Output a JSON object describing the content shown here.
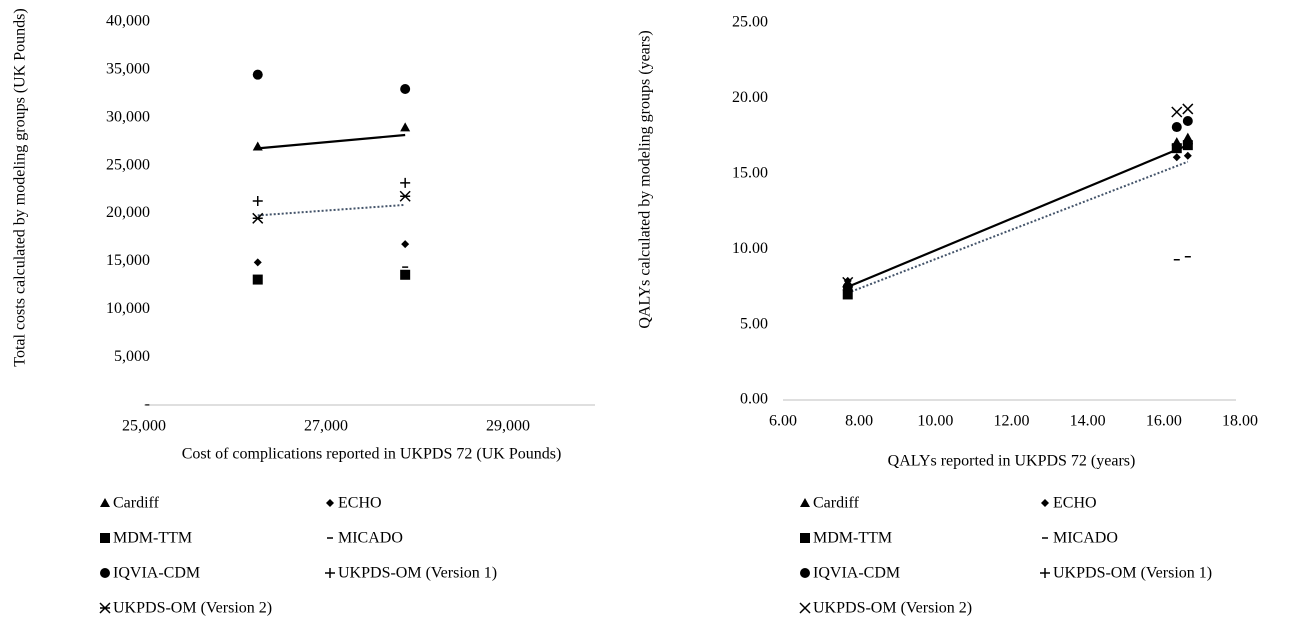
{
  "chart_data": [
    {
      "type": "scatter",
      "xlabel": "Cost of complications reported in UKPDS 72 (UK Pounds)",
      "ylabel": "Total costs calculated by modeling groups (UK Pounds)",
      "x": [
        26250,
        27870
      ],
      "xlim": [
        25000,
        30000
      ],
      "xticks": [
        {
          "value": 25000,
          "label": "25,000"
        },
        {
          "value": 27000,
          "label": "27,000"
        },
        {
          "value": 29000,
          "label": "29,000"
        }
      ],
      "ylim": [
        0,
        40000
      ],
      "yticks": [
        {
          "value": 0,
          "label": "-"
        },
        {
          "value": 5000,
          "label": "5,000"
        },
        {
          "value": 10000,
          "label": "10,000"
        },
        {
          "value": 15000,
          "label": "15,000"
        },
        {
          "value": 20000,
          "label": "20,000"
        },
        {
          "value": 25000,
          "label": "25,000"
        },
        {
          "value": 30000,
          "label": "30,000"
        },
        {
          "value": 35000,
          "label": "35,000"
        },
        {
          "value": 40000,
          "label": "40,000"
        }
      ],
      "grid": false,
      "series": [
        {
          "name": "Cardiff",
          "marker": "triangle",
          "color": "#000000",
          "values": [
            27000,
            29000
          ]
        },
        {
          "name": "ECHO",
          "marker": "diamond",
          "color": "#000000",
          "values": [
            14900,
            16800
          ]
        },
        {
          "name": "MDM-TTM",
          "marker": "square",
          "color": "#000000",
          "values": [
            13100,
            13600
          ]
        },
        {
          "name": "MICADO",
          "marker": "dash",
          "color": "#000000",
          "values": [
            null,
            14400
          ]
        },
        {
          "name": "IQVIA-CDM",
          "marker": "circle",
          "color": "#000000",
          "values": [
            34500,
            33000
          ]
        },
        {
          "name": "UKPDS-OM (Version 1)",
          "marker": "plus",
          "color": "#000000",
          "values": [
            21300,
            23200
          ]
        },
        {
          "name": "UKPDS-OM (Version 2)",
          "marker": "star",
          "color": "#000000",
          "values": [
            19500,
            21800
          ]
        }
      ],
      "trendlines": [
        {
          "x": [
            26250,
            27870
          ],
          "y": [
            26800,
            28200
          ],
          "color": "#000000",
          "dash": false
        },
        {
          "x": [
            26250,
            27870
          ],
          "y": [
            19800,
            20900
          ],
          "color": "#44546a",
          "dash": true
        }
      ]
    },
    {
      "type": "scatter",
      "xlabel": "QALYs reported in UKPDS 72 (years)",
      "ylabel": "QALYs calculated by modeling groups (years)",
      "x": [
        7.7,
        16.34,
        16.63
      ],
      "xlim": [
        6,
        18
      ],
      "xticks": [
        {
          "value": 6,
          "label": "6.00"
        },
        {
          "value": 8,
          "label": "8.00"
        },
        {
          "value": 10,
          "label": "10.00"
        },
        {
          "value": 12,
          "label": "12.00"
        },
        {
          "value": 14,
          "label": "14.00"
        },
        {
          "value": 16,
          "label": "16.00"
        },
        {
          "value": 18,
          "label": "18.00"
        }
      ],
      "ylim": [
        0,
        25
      ],
      "yticks": [
        {
          "value": 0,
          "label": "0.00"
        },
        {
          "value": 5,
          "label": "5.00"
        },
        {
          "value": 10,
          "label": "10.00"
        },
        {
          "value": 15,
          "label": "15.00"
        },
        {
          "value": 20,
          "label": "20.00"
        },
        {
          "value": 25,
          "label": "25.00"
        }
      ],
      "grid": false,
      "series": [
        {
          "name": "Cardiff",
          "marker": "triangle",
          "color": "#000000",
          "values": [
            7.8,
            17.1,
            17.4
          ]
        },
        {
          "name": "ECHO",
          "marker": "diamond",
          "color": "#000000",
          "values": [
            7.9,
            16.1,
            16.2
          ]
        },
        {
          "name": "MDM-TTM",
          "marker": "square",
          "color": "#000000",
          "values": [
            7.0,
            16.7,
            16.9
          ]
        },
        {
          "name": "MICADO",
          "marker": "dash",
          "color": "#000000",
          "values": [
            null,
            9.3,
            9.5
          ]
        },
        {
          "name": "IQVIA-CDM",
          "marker": "circle",
          "color": "#000000",
          "values": [
            7.5,
            18.1,
            18.5
          ]
        },
        {
          "name": "UKPDS-OM (Version 1)",
          "marker": "plus",
          "color": "#000000",
          "values": [
            7.3,
            16.9,
            17.0
          ]
        },
        {
          "name": "UKPDS-OM (Version 2)",
          "marker": "cross",
          "color": "#000000",
          "values": [
            7.8,
            19.1,
            19.3
          ]
        }
      ],
      "trendlines": [
        {
          "x": [
            7.7,
            16.63
          ],
          "y": [
            7.5,
            16.9
          ],
          "color": "#000000",
          "dash": false
        },
        {
          "x": [
            7.7,
            16.63
          ],
          "y": [
            7.1,
            15.8
          ],
          "color": "#44546a",
          "dash": true
        }
      ]
    }
  ]
}
